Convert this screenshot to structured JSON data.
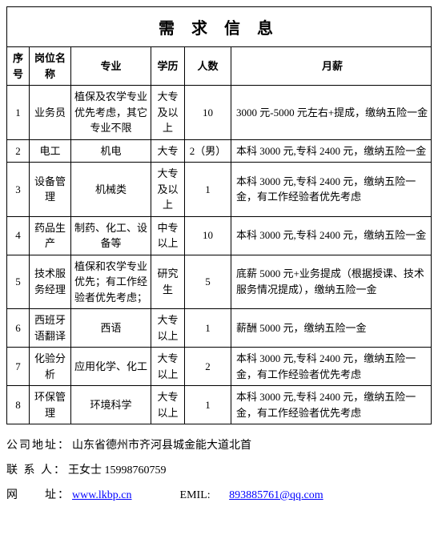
{
  "title": "需 求 信 息",
  "table": {
    "headers": {
      "no": "序号",
      "position": "岗位名称",
      "major": "专业",
      "edu": "学历",
      "count": "人数",
      "salary": "月薪"
    },
    "rows": [
      {
        "no": "1",
        "position": "业务员",
        "major": "植保及农学专业优先考虑，其它专业不限",
        "edu": "大专及以上",
        "count": "10",
        "salary": "3000 元-5000 元左右+提成，缴纳五险一金"
      },
      {
        "no": "2",
        "position": "电工",
        "major": "机电",
        "edu": "大专",
        "count": "2（男）",
        "salary": "本科 3000 元,专科 2400 元，缴纳五险一金"
      },
      {
        "no": "3",
        "position": "设备管理",
        "major": "机械类",
        "edu": "大专及以上",
        "count": "1",
        "salary": "本科 3000 元,专科 2400 元，缴纳五险一金，有工作经验者优先考虑"
      },
      {
        "no": "4",
        "position": "药品生产",
        "major": "制药、化工、设备等",
        "edu": "中专以上",
        "count": "10",
        "salary": "本科 3000 元,专科 2400 元，缴纳五险一金"
      },
      {
        "no": "5",
        "position": "技术服务经理",
        "major": "植保和农学专业优先；有工作经验者优先考虑；",
        "edu": "研究生",
        "count": "5",
        "salary": "底薪 5000 元+业务提成（根据授课、技术服务情况提成），缴纳五险一金"
      },
      {
        "no": "6",
        "position": "西班牙语翻译",
        "major": "西语",
        "edu": "大专以上",
        "count": "1",
        "salary": "薪酬 5000 元，缴纳五险一金"
      },
      {
        "no": "7",
        "position": "化验分析",
        "major": "应用化学、化工",
        "edu": "大专以上",
        "count": "2",
        "salary": "本科 3000 元,专科 2400 元，缴纳五险一金，有工作经验者优先考虑"
      },
      {
        "no": "8",
        "position": "环保管理",
        "major": "环境科学",
        "edu": "大专以上",
        "count": "1",
        "salary": "本科 3000 元,专科 2400 元，缴纳五险一金，有工作经验者优先考虑"
      }
    ]
  },
  "footer": {
    "address_label": "公司地址：",
    "address_value": "山东省德州市齐河县城金能大道北首",
    "contact_label": "联 系 人：",
    "contact_value": "王女士 15998760759",
    "website_label": "网　　址：",
    "website_value": "www.lkbp.cn",
    "email_label": "EMIL:",
    "email_value": "893885761@qq.com"
  },
  "styling": {
    "background_color": "#ffffff",
    "text_color": "#000000",
    "border_color": "#000000",
    "link_color": "#0000ff",
    "title_fontsize": 20,
    "body_fontsize": 13,
    "footer_fontsize": 14
  }
}
